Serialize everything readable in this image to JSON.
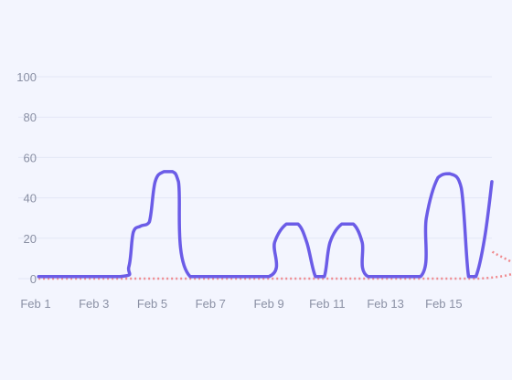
{
  "chart_data": {
    "type": "line",
    "title": "",
    "xlabel": "",
    "ylabel": "",
    "ylim": [
      0,
      100
    ],
    "yticks": [
      0,
      20,
      40,
      60,
      80,
      100
    ],
    "x_tick_labels": [
      "Feb 1",
      "Feb 3",
      "Feb 5",
      "Feb 7",
      "Feb 9",
      "Feb 11",
      "Feb 13",
      "Feb 15"
    ],
    "grid": true,
    "legend": "none",
    "series": [
      {
        "color": "#6b5ce7",
        "style": "solid",
        "points": [
          [
            1.1,
            1
          ],
          [
            3.9,
            1
          ],
          [
            4.2,
            6
          ],
          [
            4.35,
            23
          ],
          [
            4.6,
            26
          ],
          [
            4.9,
            28
          ],
          [
            5.1,
            48
          ],
          [
            5.4,
            53
          ],
          [
            5.7,
            53
          ],
          [
            5.9,
            48
          ],
          [
            6.3,
            1
          ],
          [
            9.0,
            1
          ],
          [
            9.2,
            18
          ],
          [
            9.6,
            27
          ],
          [
            10.0,
            27
          ],
          [
            10.3,
            18
          ],
          [
            10.6,
            1
          ],
          [
            10.9,
            1
          ],
          [
            11.1,
            18
          ],
          [
            11.5,
            27
          ],
          [
            11.9,
            27
          ],
          [
            12.2,
            18
          ],
          [
            12.4,
            1
          ],
          [
            14.2,
            1
          ],
          [
            14.4,
            30
          ],
          [
            14.8,
            50
          ],
          [
            15.2,
            52
          ],
          [
            15.6,
            45
          ],
          [
            15.85,
            1
          ],
          [
            16.1,
            1
          ],
          [
            16.4,
            20
          ],
          [
            16.65,
            48
          ]
        ]
      },
      {
        "color": "#f08a8e",
        "style": "dotted",
        "points": [
          [
            1.1,
            0
          ],
          [
            16.2,
            0
          ],
          [
            16.65,
            14
          ]
        ]
      }
    ]
  }
}
